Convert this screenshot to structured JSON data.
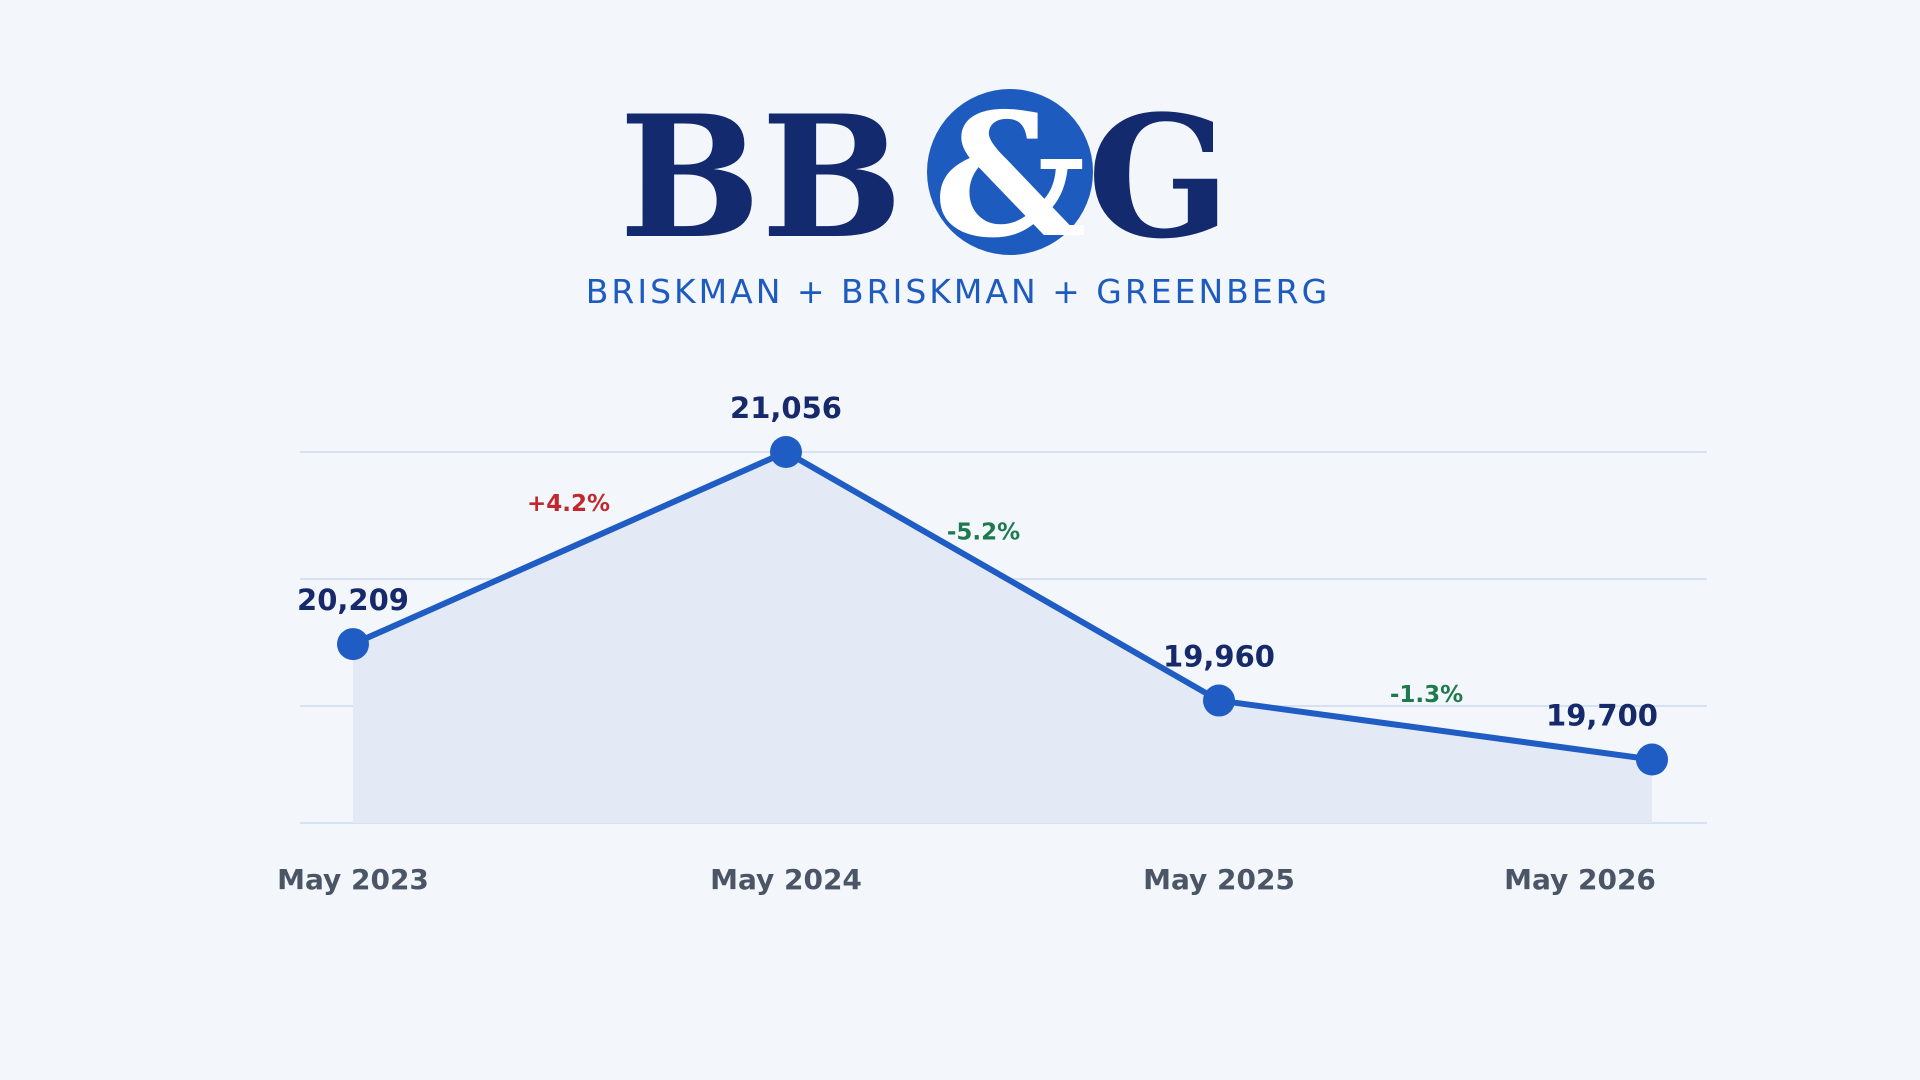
{
  "brand": {
    "monogram_left": "BB",
    "monogram_amp": "&",
    "monogram_right": "G",
    "tagline": "BRISKMAN + BRISKMAN + GREENBERG",
    "colors": {
      "navy": "#142a6e",
      "blue": "#1d5bbf"
    }
  },
  "chart_data": {
    "type": "line",
    "title": "",
    "xlabel": "",
    "ylabel": "",
    "categories": [
      "May 2023",
      "May 2024",
      "May 2025",
      "May 2026"
    ],
    "series": [
      {
        "values": [
          20209,
          21056,
          19960,
          19700
        ],
        "value_labels": [
          "20,209",
          "21,056",
          "19,960",
          "19,700"
        ]
      }
    ],
    "changes": [
      {
        "label": "+4.2%",
        "color": "#c0282d"
      },
      {
        "label": "-5.2%",
        "color": "#1e7a4c"
      },
      {
        "label": "-1.3%",
        "color": "#1e7a4c"
      }
    ],
    "ylim": [
      19420,
      21056
    ],
    "grid": true,
    "legend": "none",
    "area_fill": true,
    "colors": {
      "line": "#1f5cc4",
      "area": "#e3e9f5",
      "grid": "#d6e2f4"
    }
  }
}
